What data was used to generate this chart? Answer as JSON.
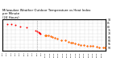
{
  "title": "Milwaukee Weather Outdoor Temperature vs Heat Index\nper Minute\n(24 Hours)",
  "title_fontsize": 2.8,
  "title_color": "#000000",
  "bg_color": "#ffffff",
  "grid_color": "#aaaaaa",
  "ylim": [
    46,
    90
  ],
  "xlim": [
    0,
    1440
  ],
  "xtick_positions": [
    0,
    60,
    120,
    180,
    240,
    300,
    360,
    420,
    480,
    540,
    600,
    660,
    720,
    780,
    840,
    900,
    960,
    1020,
    1080,
    1140,
    1200,
    1260,
    1320,
    1380
  ],
  "xtick_labels": [
    "0:00",
    "1:00",
    "2:00",
    "3:00",
    "4:00",
    "5:00",
    "6:00",
    "7:00",
    "8:00",
    "9:00",
    "10:00",
    "11:00",
    "12:00",
    "13:00",
    "14:00",
    "15:00",
    "16:00",
    "17:00",
    "18:00",
    "19:00",
    "20:00",
    "21:00",
    "22:00",
    "23:00"
  ],
  "temp_x": [
    60,
    120,
    180,
    250,
    330,
    460,
    480,
    500,
    510,
    520,
    530,
    590,
    600,
    610,
    640,
    670,
    700,
    730,
    760,
    820,
    870,
    920,
    950,
    980,
    1010,
    1060,
    1090,
    1130,
    1180,
    1220,
    1260,
    1310,
    1350,
    1400,
    1430
  ],
  "temp_y": [
    84,
    83,
    82,
    80,
    79,
    74,
    73,
    72,
    71,
    71,
    70,
    68,
    68,
    68,
    67,
    66,
    65,
    64,
    63,
    61,
    60,
    58,
    57,
    57,
    56,
    55,
    54,
    54,
    53,
    52,
    52,
    51,
    50,
    50,
    50
  ],
  "heat_x": [
    590,
    600,
    610,
    640,
    670,
    700,
    730,
    760,
    820,
    870,
    920,
    950,
    980,
    1010,
    1060,
    1090,
    1130,
    1180,
    1220,
    1260,
    1310,
    1350,
    1400,
    1430
  ],
  "heat_y": [
    68,
    68,
    68,
    67,
    66,
    65,
    64,
    63,
    61,
    60,
    58,
    57,
    57,
    56,
    55,
    54,
    54,
    53,
    52,
    52,
    51,
    50,
    50,
    50
  ],
  "temp_color": "#ff0000",
  "heat_color": "#ff8800",
  "vline_x": 480,
  "vline_color": "#888888",
  "dot_size": 2.0
}
